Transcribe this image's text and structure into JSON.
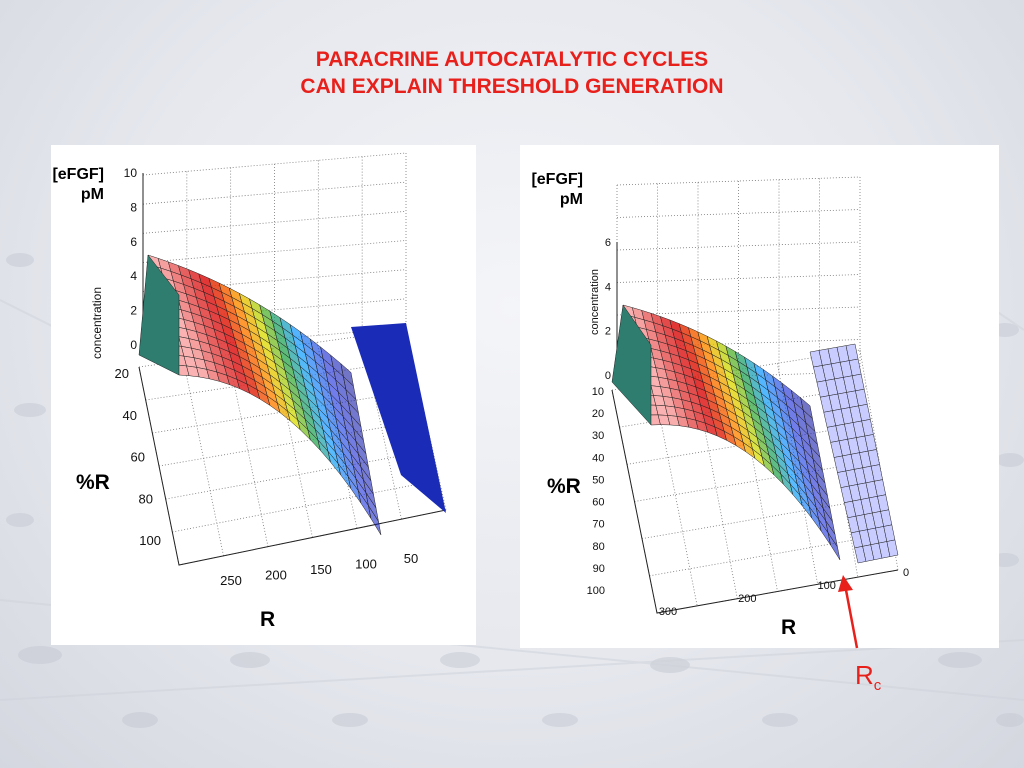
{
  "title": {
    "line1": "PARACRINE AUTOCATALYTIC CYCLES",
    "line2": "CAN EXPLAIN  THRESHOLD GENERATION"
  },
  "annotation": {
    "rc_main": "R",
    "rc_sub": "c",
    "color": "#e8201c"
  },
  "colors": {
    "title": "#e8201c",
    "panel": "#ffffff"
  },
  "chart_data": [
    {
      "type": "surface",
      "zlabel": "concentration",
      "unit_label_line1": "[eFGF]",
      "unit_label_line2": "pM",
      "ylabel": "%R",
      "xlabel": "R",
      "zticks": [
        "0",
        "2",
        "4",
        "6",
        "8",
        "10"
      ],
      "yticks": [
        "20",
        "40",
        "60",
        "80",
        "100"
      ],
      "xticks": [
        "250",
        "200",
        "150",
        "100",
        "50"
      ],
      "zlim": [
        0,
        10
      ],
      "grid": true,
      "colormap": "jet"
    },
    {
      "type": "surface",
      "zlabel": "concentration",
      "unit_label_line1": "[eFGF]",
      "unit_label_line2": "pM",
      "ylabel": "%R",
      "xlabel": "R",
      "zticks": [
        "0",
        "2",
        "4",
        "6"
      ],
      "yticks": [
        "10",
        "20",
        "30",
        "40",
        "50",
        "60",
        "70",
        "80",
        "90",
        "100"
      ],
      "xticks": [
        "300",
        "200",
        "100",
        "0"
      ],
      "zlim": [
        0,
        6
      ],
      "grid": true,
      "colormap": "jet"
    }
  ]
}
